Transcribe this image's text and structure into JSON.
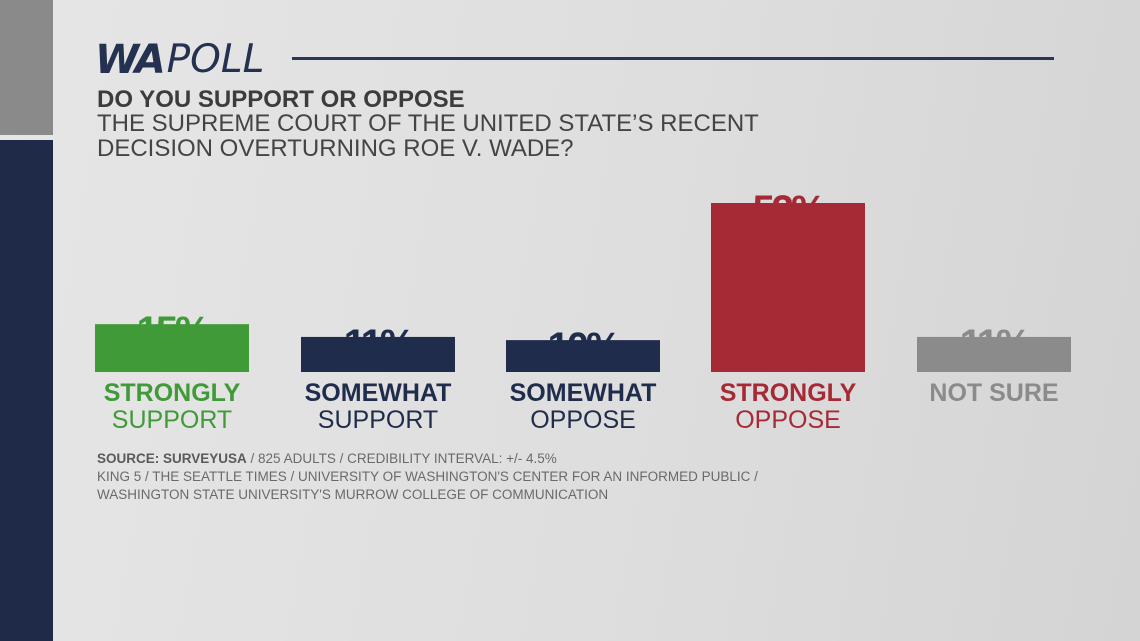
{
  "logo": {
    "wa": "WA",
    "poll": "POLL"
  },
  "question": {
    "line1": "DO YOU SUPPORT OR OPPOSE",
    "line2": "THE SUPREME COURT OF THE UNITED STATE’S RECENT",
    "line3": "DECISION OVERTURNING ROE V. WADE?"
  },
  "colors": {
    "strongly_support": "#3f9a37",
    "somewhat": "#1f2c4c",
    "strongly_oppose": "#a62a36",
    "not_sure": "#8b8b8b"
  },
  "chart_data": {
    "type": "bar",
    "categories": [
      [
        "STRONGLY",
        "SUPPORT"
      ],
      [
        "SOMEWHAT",
        "SUPPORT"
      ],
      [
        "SOMEWHAT",
        "OPPOSE"
      ],
      [
        "STRONGLY",
        "OPPOSE"
      ],
      [
        "NOT SURE"
      ]
    ],
    "values": [
      15,
      11,
      10,
      53,
      11
    ],
    "value_labels": [
      "15%",
      "11%",
      "10%",
      "53%",
      "11%"
    ],
    "bar_colors": [
      "#3f9a37",
      "#1f2c4c",
      "#1f2c4c",
      "#a62a36",
      "#8b8b8b"
    ],
    "ylim": [
      0,
      53
    ]
  },
  "source": {
    "label": "SOURCE: SURVEYUSA",
    "line1_rest": " / 825 ADULTS / CREDIBILITY INTERVAL: +/- 4.5%",
    "line2": "KING 5 / THE SEATTLE TIMES / UNIVERSITY OF WASHINGTON'S CENTER FOR AN INFORMED PUBLIC /",
    "line3": "WASHINGTON STATE UNIVERSITY'S MURROW COLLEGE OF COMMUNICATION"
  }
}
